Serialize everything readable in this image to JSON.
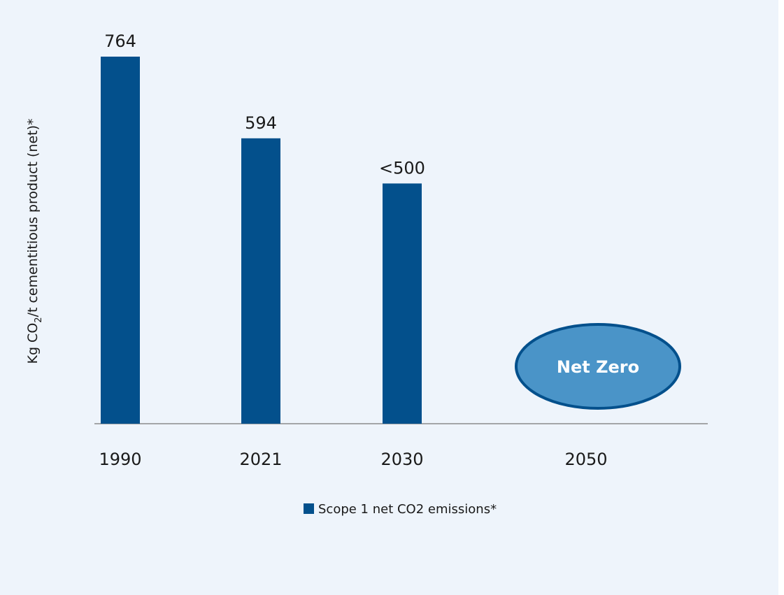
{
  "chart_data": {
    "type": "bar",
    "categories": [
      "1990",
      "2021",
      "2030",
      "2050"
    ],
    "series": [
      {
        "name": "Scope 1 net CO2 emissions*",
        "values": [
          764,
          594,
          500,
          null
        ],
        "color": "#03508c"
      }
    ],
    "data_labels": [
      "764",
      "594",
      "<500",
      ""
    ],
    "ylabel_parts": {
      "before": "Kg CO",
      "sub": "2",
      "after": "/t cementitious product (net)*"
    },
    "ylim": [
      0,
      764
    ],
    "grid": false,
    "legend_position": "bottom",
    "annotation": {
      "category": "2050",
      "text": "Net Zero",
      "fill": "#4a94c8",
      "stroke": "#03508c"
    },
    "background": "#eef4fb"
  }
}
